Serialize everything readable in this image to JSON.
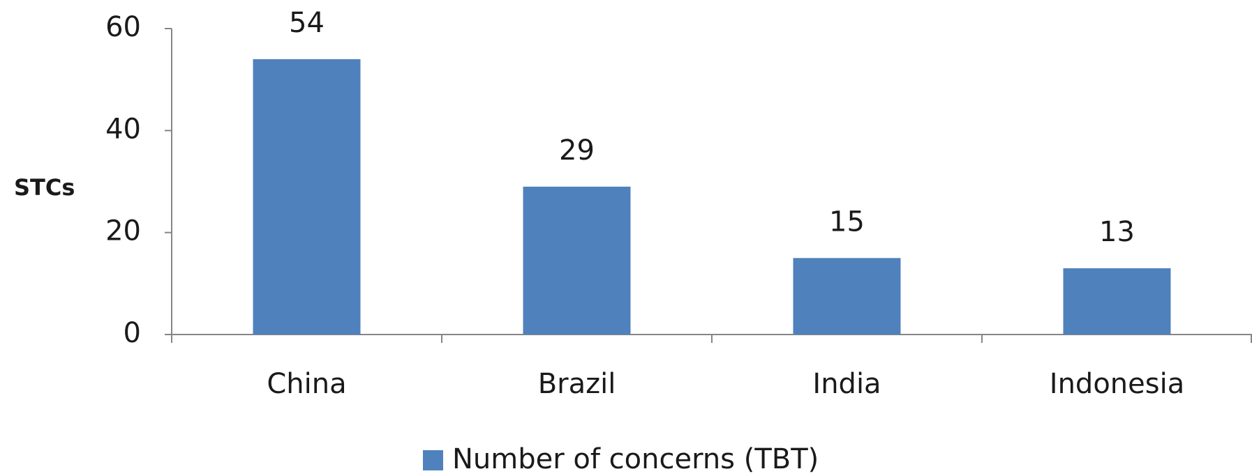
{
  "chart_data": {
    "type": "bar",
    "y_label": "STCs",
    "categories": [
      "China",
      "Brazil",
      "India",
      "Indonesia"
    ],
    "series": [
      {
        "name": "Number of concerns (TBT)",
        "color": "#4f81bd",
        "values": [
          54,
          29,
          15,
          13
        ]
      }
    ],
    "ylim": [
      0,
      60
    ],
    "yticks": [
      0,
      20,
      40,
      60
    ],
    "grid": false,
    "legend": "bottom"
  }
}
